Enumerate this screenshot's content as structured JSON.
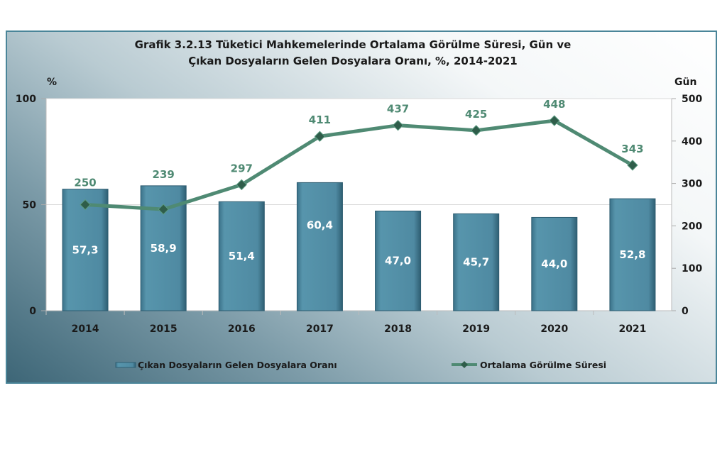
{
  "chart_data": {
    "type": "bar+line",
    "title_line1": "Grafik 3.2.13 Tüketici Mahkemelerinde Ortalama Görülme Süresi, Gün ve",
    "title_line2": "Çıkan Dosyaların Gelen Dosyalara Oranı, %, 2014-2021",
    "categories": [
      "2014",
      "2015",
      "2016",
      "2017",
      "2018",
      "2019",
      "2020",
      "2021"
    ],
    "series": [
      {
        "name": "Çıkan Dosyaların Gelen Dosyalara Oranı",
        "type": "bar",
        "axis": "left",
        "values": [
          57.3,
          58.9,
          51.4,
          60.4,
          47.0,
          45.7,
          44.0,
          52.8
        ],
        "labels": [
          "57,3",
          "58,9",
          "51,4",
          "60,4",
          "47,0",
          "45,7",
          "44,0",
          "52,8"
        ],
        "color": "#4e8aa2"
      },
      {
        "name": "Ortalama Görülme Süresi",
        "type": "line",
        "axis": "right",
        "values": [
          250,
          239,
          297,
          411,
          437,
          425,
          448,
          343
        ],
        "labels": [
          "250",
          "239",
          "297",
          "411",
          "437",
          "425",
          "448",
          "343"
        ],
        "color": "#4f8a73"
      }
    ],
    "ylabel_left": "%",
    "ylim_left": [
      0,
      100
    ],
    "yticks_left": [
      "0",
      "50",
      "100"
    ],
    "ylabel_right": "Gün",
    "ylim_right": [
      0,
      500
    ],
    "yticks_right": [
      "0",
      "100",
      "200",
      "300",
      "400",
      "500"
    ],
    "grid": true,
    "legend": "bottom"
  }
}
